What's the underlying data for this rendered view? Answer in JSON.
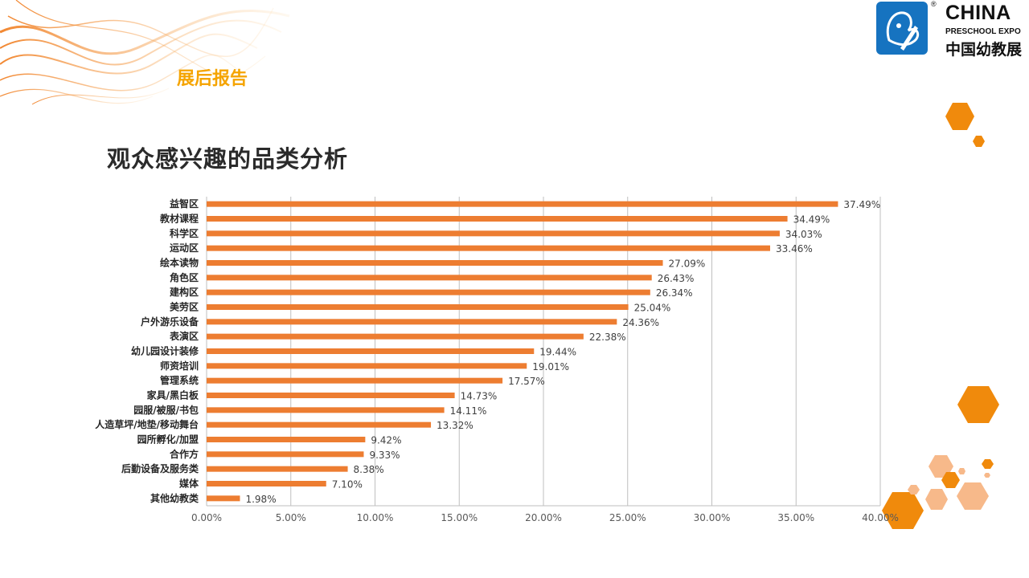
{
  "header": {
    "section_label": "展后报告",
    "title": "观众感兴趣的品类分析"
  },
  "logo": {
    "name_en": "CHINA",
    "subtitle_en": "PRESCHOOL EXPO",
    "name_cn": "中国幼教展",
    "registered_mark": "®",
    "mark_icon": "butterfly-pencil-icon"
  },
  "colors": {
    "bar": "#ed7d31",
    "accent": "#f5a400",
    "hexagon": "#f08a0c",
    "hexagon_light": "#f7b98a",
    "logo_blue": "#1673c0"
  },
  "chart_data": {
    "type": "bar",
    "orientation": "horizontal",
    "categories": [
      "益智区",
      "教材课程",
      "科学区",
      "运动区",
      "绘本读物",
      "角色区",
      "建构区",
      "美劳区",
      "户外游乐设备",
      "表演区",
      "幼儿园设计装修",
      "师资培训",
      "管理系统",
      "家具/黑白板",
      "园服/被服/书包",
      "人造草坪/地垫/移动舞台",
      "园所孵化/加盟",
      "合作方",
      "后勤设备及服务类",
      "媒体",
      "其他幼教类"
    ],
    "values": [
      37.49,
      34.49,
      34.03,
      33.46,
      27.09,
      26.43,
      26.34,
      25.04,
      24.36,
      22.38,
      19.44,
      19.01,
      17.57,
      14.73,
      14.11,
      13.32,
      9.42,
      9.33,
      8.38,
      7.1,
      1.98
    ],
    "data_labels": [
      "37.49%",
      "34.49%",
      "34.03%",
      "33.46%",
      "27.09%",
      "26.43%",
      "26.34%",
      "25.04%",
      "24.36%",
      "22.38%",
      "19.44%",
      "19.01%",
      "17.57%",
      "14.73%",
      "14.11%",
      "13.32%",
      "9.42%",
      "9.33%",
      "8.38%",
      "7.10%",
      "1.98%"
    ],
    "x_ticks": [
      "0.00%",
      "5.00%",
      "10.00%",
      "15.00%",
      "20.00%",
      "25.00%",
      "30.00%",
      "35.00%",
      "40.00%"
    ],
    "xlim": [
      0,
      40
    ],
    "grid": true,
    "legend": "none",
    "xlabel": "",
    "ylabel": ""
  }
}
